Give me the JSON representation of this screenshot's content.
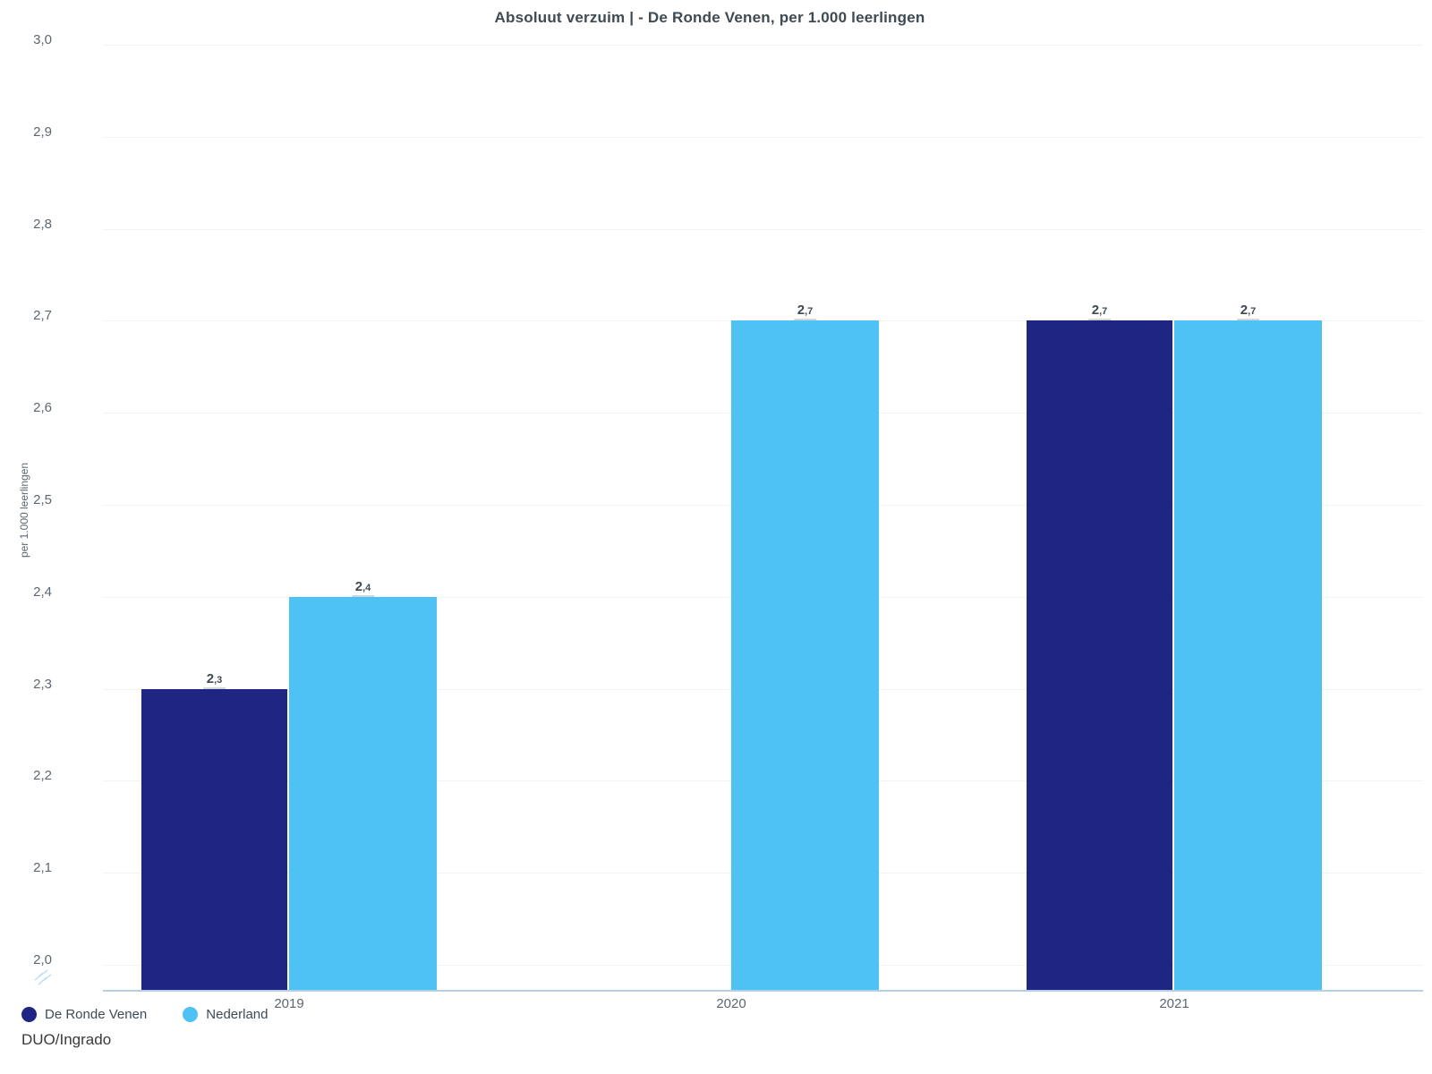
{
  "title": "Absoluut verzuim | - De Ronde Venen, per 1.000 leerlingen",
  "source": "DUO/Ingrado",
  "y_axis": {
    "title": "per 1.000 leerlingen",
    "tick_labels": [
      "3,0",
      "2,9",
      "2,8",
      "2,7",
      "2,6",
      "2,5",
      "2,4",
      "2,3",
      "2,2",
      "2,1",
      "2,0"
    ],
    "tick_values": [
      3.0,
      2.9,
      2.8,
      2.7,
      2.6,
      2.5,
      2.4,
      2.3,
      2.2,
      2.1,
      2.0
    ],
    "has_axis_break": true
  },
  "x_axis": {
    "tick_labels": [
      "2019",
      "2020",
      "2021"
    ]
  },
  "legend": {
    "items": [
      {
        "label": "De Ronde Venen",
        "color": "#1f2583"
      },
      {
        "label": "Nederland",
        "color": "#4ec1f5"
      }
    ]
  },
  "chart_data": {
    "type": "bar",
    "title": "Absoluut verzuim | - De Ronde Venen, per 1.000 leerlingen",
    "categories": [
      "2019",
      "2020",
      "2021"
    ],
    "series": [
      {
        "name": "De Ronde Venen",
        "color": "#1f2583",
        "values": [
          2.3,
          null,
          2.7
        ],
        "value_labels": [
          "2,3",
          null,
          "2,7"
        ]
      },
      {
        "name": "Nederland",
        "color": "#4ec1f5",
        "values": [
          2.4,
          2.7,
          2.7
        ],
        "value_labels": [
          "2,4",
          "2,7",
          "2,7"
        ]
      }
    ],
    "xlabel": "",
    "ylabel": "per 1.000 leerlingen",
    "ylim": [
      2.0,
      3.0
    ],
    "grid": true,
    "legend_position": "bottom-left",
    "y_axis_break": true,
    "decimal_separator": ",",
    "source": "DUO/Ingrado"
  }
}
